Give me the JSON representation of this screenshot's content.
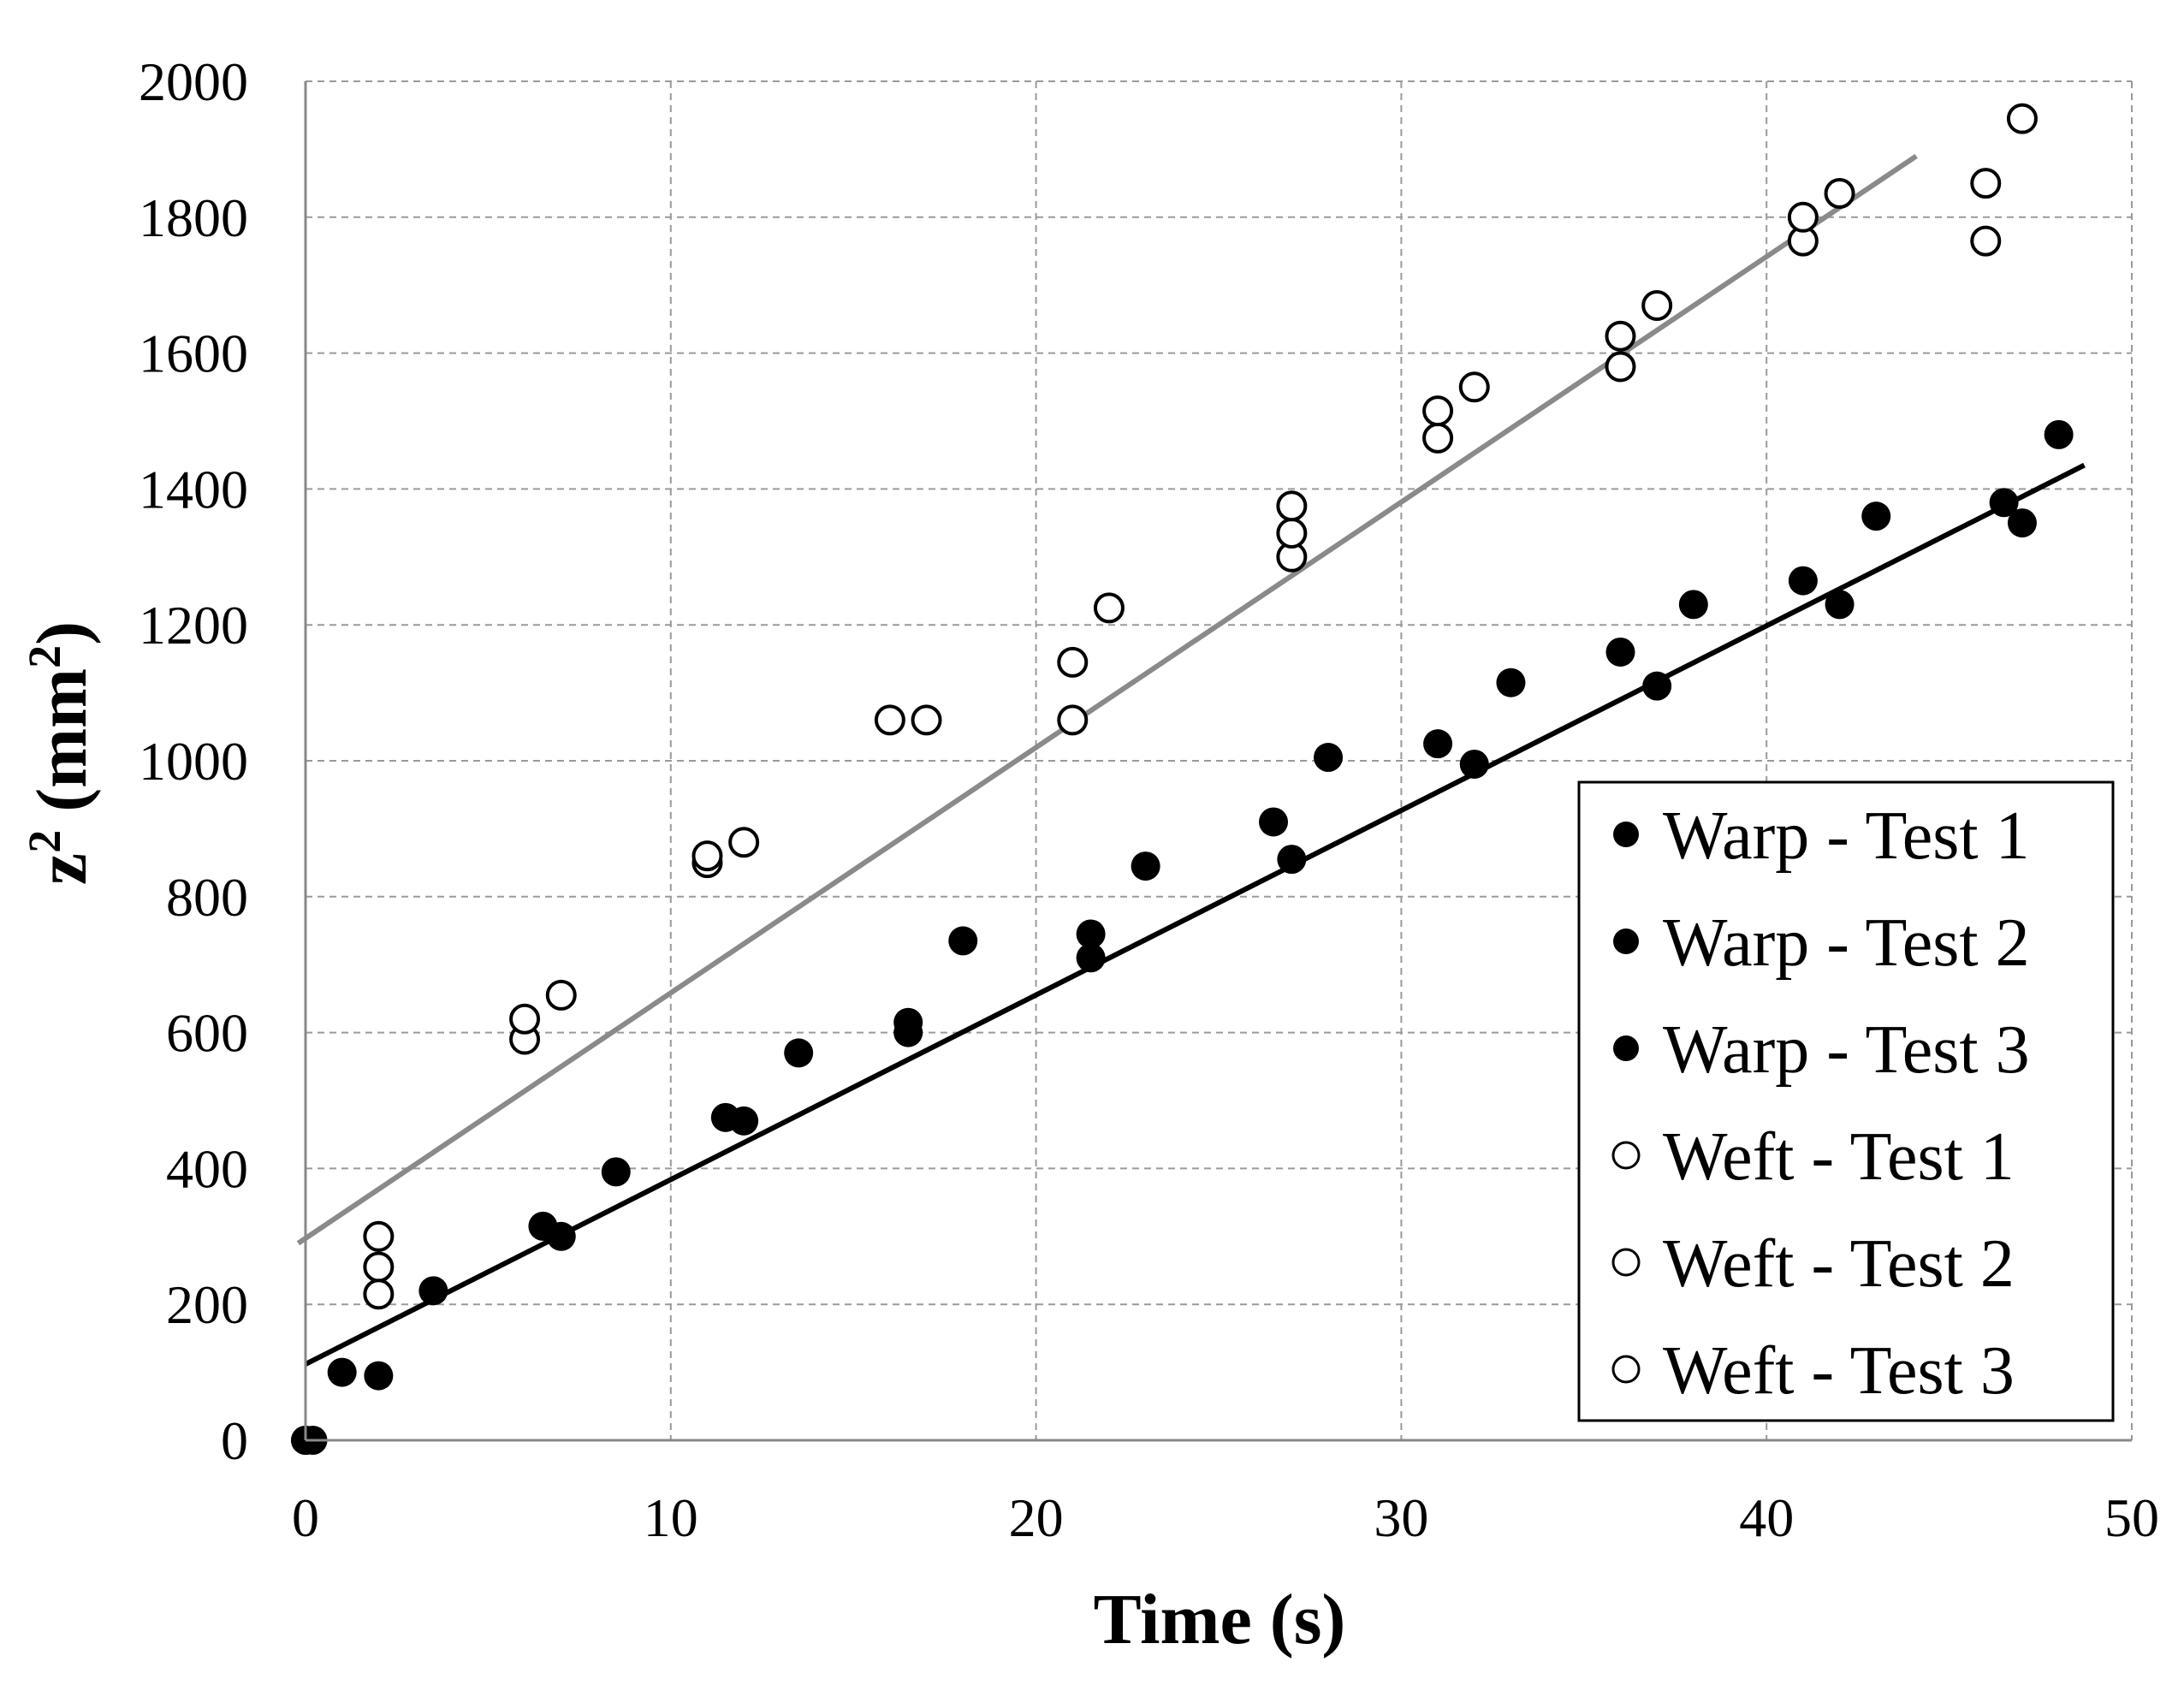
{
  "chart_data": {
    "type": "scatter",
    "title": "",
    "xlabel": "Time (s)",
    "ylabel_base": "z",
    "ylabel_sup": "2",
    "ylabel_unit_open": " (mm",
    "ylabel_unit_sup": "2",
    "ylabel_unit_close": ")",
    "xlim": [
      0,
      50
    ],
    "ylim": [
      0,
      2000
    ],
    "xticks": [
      0,
      10,
      20,
      30,
      40,
      50
    ],
    "yticks": [
      0,
      200,
      400,
      600,
      800,
      1000,
      1200,
      1400,
      1600,
      1800,
      2000
    ],
    "grid": true,
    "legend_position": "bottom-right",
    "series": [
      {
        "name": "Warp - Test 1",
        "marker": "filled",
        "points": [
          [
            0,
            0
          ],
          [
            2,
            95
          ],
          [
            6.5,
            315
          ],
          [
            11.5,
            475
          ],
          [
            16.5,
            600
          ],
          [
            21.5,
            745
          ],
          [
            27,
            855
          ],
          [
            32,
            995
          ],
          [
            37,
            1110
          ],
          [
            42,
            1230
          ],
          [
            47,
            1350
          ]
        ]
      },
      {
        "name": "Warp - Test 2",
        "marker": "filled",
        "points": [
          [
            0.2,
            0
          ],
          [
            1,
            100
          ],
          [
            3.5,
            220
          ],
          [
            8.5,
            395
          ],
          [
            13.5,
            570
          ],
          [
            18,
            735
          ],
          [
            23,
            845
          ],
          [
            28,
            1005
          ],
          [
            33,
            1115
          ],
          [
            38,
            1230
          ],
          [
            43,
            1360
          ],
          [
            48,
            1480
          ]
        ]
      },
      {
        "name": "Warp - Test 3",
        "marker": "filled",
        "points": [
          [
            0,
            0
          ],
          [
            7,
            300
          ],
          [
            12,
            470
          ],
          [
            16.5,
            615
          ],
          [
            21.5,
            710
          ],
          [
            26.5,
            910
          ],
          [
            31,
            1025
          ],
          [
            36,
            1160
          ],
          [
            41,
            1265
          ],
          [
            46.5,
            1380
          ]
        ]
      },
      {
        "name": "Weft - Test 1",
        "marker": "open",
        "points": [
          [
            2,
            300
          ],
          [
            6,
            590
          ],
          [
            11,
            850
          ],
          [
            16,
            1060
          ],
          [
            21,
            1060
          ],
          [
            27,
            1300
          ],
          [
            31,
            1475
          ],
          [
            36,
            1580
          ],
          [
            41,
            1765
          ],
          [
            46,
            1765
          ]
        ]
      },
      {
        "name": "Weft - Test 2",
        "marker": "open",
        "points": [
          [
            2,
            255
          ],
          [
            6,
            620
          ],
          [
            11,
            860
          ],
          [
            17,
            1060
          ],
          [
            22,
            1225
          ],
          [
            27,
            1335
          ],
          [
            32,
            1550
          ],
          [
            37,
            1670
          ],
          [
            42,
            1835
          ],
          [
            47,
            1945
          ]
        ]
      },
      {
        "name": "Weft - Test 3",
        "marker": "open",
        "points": [
          [
            2,
            215
          ],
          [
            7,
            655
          ],
          [
            12,
            880
          ],
          [
            21,
            1145
          ],
          [
            27,
            1375
          ],
          [
            31,
            1515
          ],
          [
            36,
            1625
          ],
          [
            41,
            1800
          ],
          [
            46,
            1850
          ]
        ]
      }
    ],
    "trendlines": [
      {
        "name": "warp-fit",
        "color": "#000000",
        "x": [
          0,
          48.7
        ],
        "y": [
          112,
          1435
        ]
      },
      {
        "name": "weft-fit",
        "color": "#8a8a8a",
        "x": [
          -0.2,
          44.1
        ],
        "y": [
          290,
          1890
        ]
      }
    ],
    "colors": {
      "grid": "#9a9a9a",
      "axis": "#888888",
      "filled_marker": "#000000",
      "open_marker_fill": "#ffffff"
    }
  }
}
